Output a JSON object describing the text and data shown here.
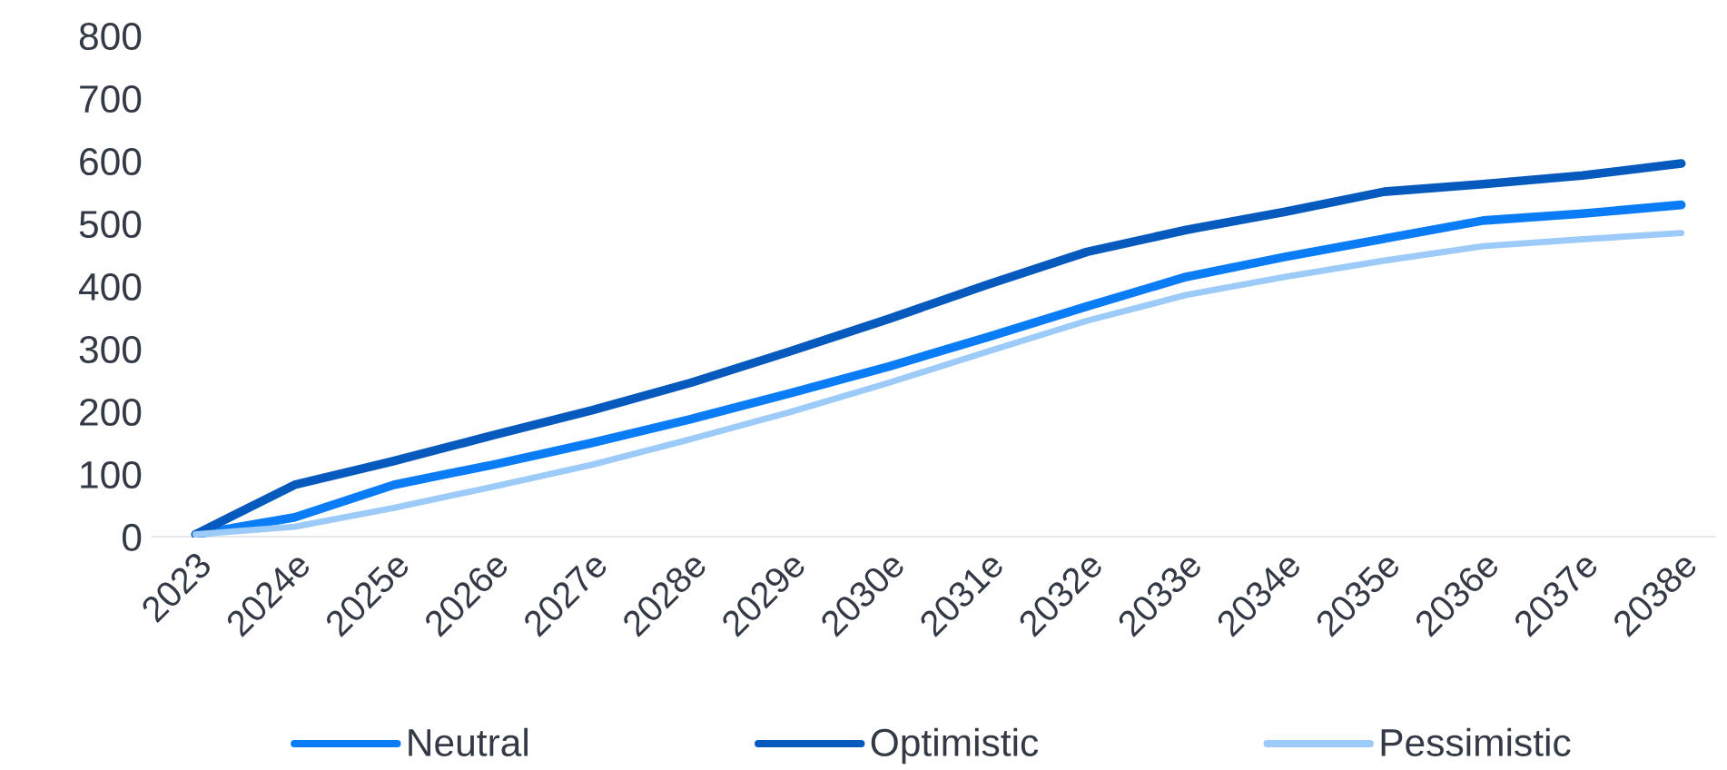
{
  "chart_data": {
    "type": "line",
    "categories": [
      "2023",
      "2024e",
      "2025e",
      "2026e",
      "2027e",
      "2028e",
      "2029e",
      "2030e",
      "2031e",
      "2032e",
      "2033e",
      "2034e",
      "2035e",
      "2036e",
      "2037e",
      "2038e"
    ],
    "series": [
      {
        "name": "Neutral",
        "color": "#0a7cf5",
        "values": [
          5,
          32,
          84,
          116,
          151,
          189,
          230,
          273,
          320,
          369,
          416,
          448,
          477,
          506,
          517,
          531
        ]
      },
      {
        "name": "Optimistic",
        "color": "#0659bd",
        "values": [
          5,
          84,
          122,
          163,
          203,
          247,
          297,
          349,
          404,
          456,
          491,
          520,
          552,
          564,
          578,
          597
        ]
      },
      {
        "name": "Pessimistic",
        "color": "#9ccbfa",
        "values": [
          5,
          17,
          47,
          81,
          116,
          157,
          200,
          247,
          297,
          346,
          387,
          416,
          442,
          465,
          476,
          486
        ]
      }
    ],
    "ylim": [
      0,
      800
    ],
    "yticks": [
      0,
      100,
      200,
      300,
      400,
      500,
      600,
      700,
      800
    ],
    "grid": false,
    "legend": "bottom",
    "line_style": "solid",
    "marker": "none"
  }
}
